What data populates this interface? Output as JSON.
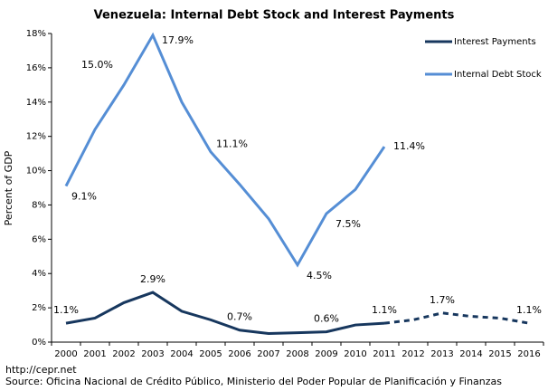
{
  "chart_data": {
    "type": "line",
    "title": "Venezuela: Internal Debt Stock and Interest Payments",
    "y_label": "Percent of GDP",
    "source_url": "http://cepr.net",
    "source": "Source: Oficina Nacional de Crédito Público, Ministerio del Poder Popular de Planificación y Finanzas",
    "categories": [
      "2000",
      "2001",
      "2002",
      "2003",
      "2004",
      "2005",
      "2006",
      "2007",
      "2008",
      "2009",
      "2010",
      "2011",
      "2012",
      "2013",
      "2014",
      "2015",
      "2016"
    ],
    "series": [
      {
        "name": "Interest Payments",
        "color": "#17375e",
        "values": [
          1.1,
          1.4,
          2.3,
          2.9,
          1.8,
          1.3,
          0.7,
          0.5,
          0.55,
          0.6,
          1.0,
          1.1,
          null,
          null,
          null,
          null,
          null
        ],
        "value_labels": [
          "1.1%",
          null,
          null,
          "2.9%",
          null,
          null,
          "0.7%",
          null,
          null,
          "0.6%",
          null,
          "1.1%",
          null,
          null,
          null,
          null,
          null
        ],
        "projected_values": [
          null,
          null,
          null,
          null,
          null,
          null,
          null,
          null,
          null,
          null,
          null,
          1.1,
          1.3,
          1.7,
          1.5,
          1.4,
          1.1
        ],
        "projected_value_labels": [
          null,
          null,
          null,
          null,
          null,
          null,
          null,
          null,
          null,
          null,
          null,
          null,
          null,
          "1.7%",
          null,
          null,
          "1.1%"
        ]
      },
      {
        "name": "Internal Debt Stock",
        "color": "#558ed5",
        "values": [
          9.1,
          12.4,
          15.0,
          17.9,
          14.0,
          11.1,
          9.2,
          7.2,
          4.5,
          7.5,
          8.9,
          11.4,
          null,
          null,
          null,
          null,
          null
        ],
        "value_labels": [
          "9.1%",
          null,
          "15.0%",
          "17.9%",
          null,
          "11.1%",
          null,
          null,
          "4.5%",
          "7.5%",
          null,
          "11.4%",
          null,
          null,
          null,
          null,
          null
        ]
      }
    ],
    "ylim": [
      0,
      18
    ],
    "yticks": [
      {
        "value": 0,
        "label": "0%"
      },
      {
        "value": 2,
        "label": "2%"
      },
      {
        "value": 4,
        "label": "4%"
      },
      {
        "value": 6,
        "label": "6%"
      },
      {
        "value": 8,
        "label": "8%"
      },
      {
        "value": 10,
        "label": "10%"
      },
      {
        "value": 12,
        "label": "12%"
      },
      {
        "value": 14,
        "label": "14%"
      },
      {
        "value": 16,
        "label": "16%"
      },
      {
        "value": 18,
        "label": "18%"
      }
    ],
    "legend": "upper right",
    "grid": false
  }
}
